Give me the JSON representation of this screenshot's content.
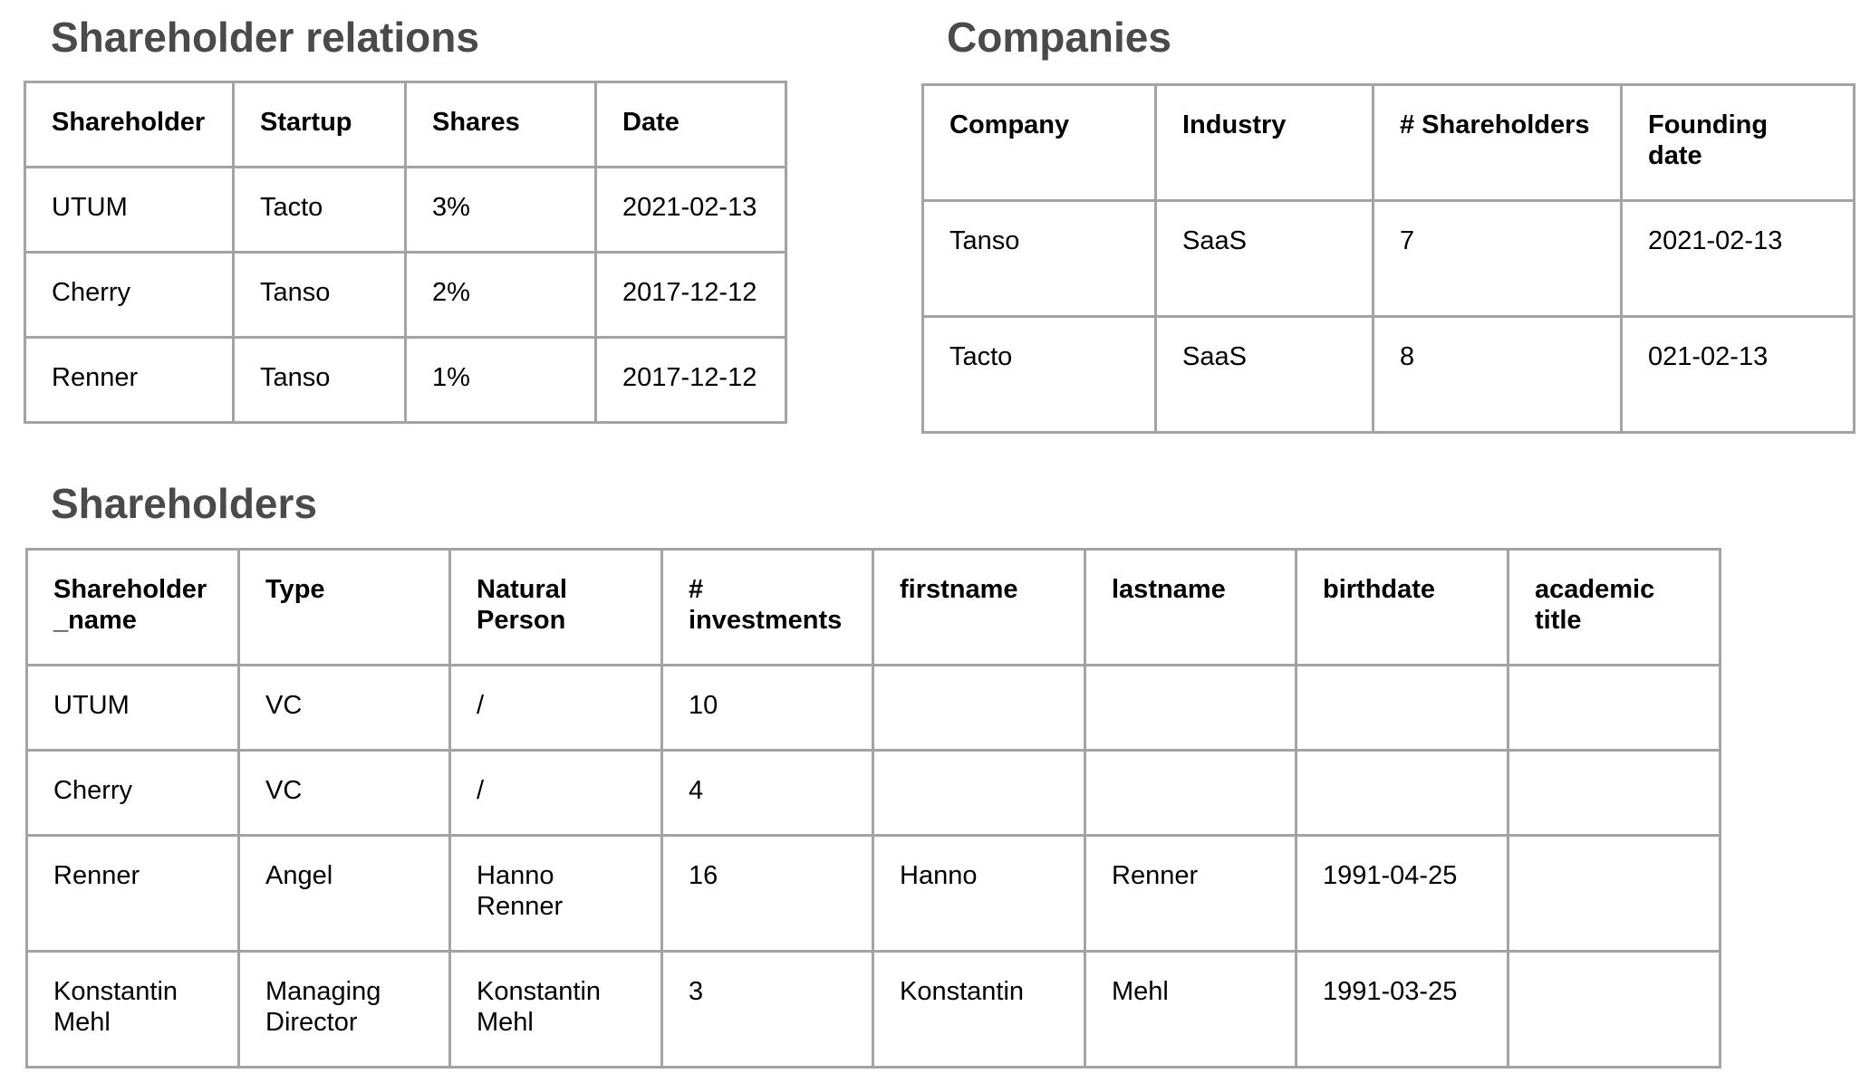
{
  "shareholder_relations": {
    "title": "Shareholder relations",
    "headers": [
      "Shareholder",
      "Startup",
      "Shares",
      "Date"
    ],
    "rows": [
      [
        "UTUM",
        "Tacto",
        "3%",
        "2021-02-13"
      ],
      [
        "Cherry",
        "Tanso",
        "2%",
        "2017-12-12"
      ],
      [
        "Renner",
        "Tanso",
        "1%",
        "2017-12-12"
      ]
    ]
  },
  "companies": {
    "title": "Companies",
    "headers": [
      "Company",
      "Industry",
      "# Shareholders",
      "Founding\ndate"
    ],
    "rows": [
      [
        "Tanso",
        "SaaS",
        "7",
        "2021-02-13"
      ],
      [
        "Tacto",
        "SaaS",
        "8",
        "021-02-13"
      ]
    ]
  },
  "shareholders": {
    "title": "Shareholders",
    "headers": [
      "Shareholder\n_name",
      "Type",
      "Natural\nPerson",
      "#\ninvestments",
      "firstname",
      "lastname",
      "birthdate",
      "academic\ntitle"
    ],
    "rows": [
      [
        "UTUM",
        "VC",
        "/",
        "10",
        "",
        "",
        "",
        ""
      ],
      [
        "Cherry",
        "VC",
        "/",
        "4",
        "",
        "",
        "",
        ""
      ],
      [
        "Renner",
        "Angel",
        "Hanno\nRenner",
        "16",
        "Hanno",
        "Renner",
        "1991-04-25",
        ""
      ],
      [
        "Konstantin\nMehl",
        "Managing\nDirector",
        "Konstantin\nMehl",
        "3",
        "Konstantin",
        "Mehl",
        "1991-03-25",
        ""
      ]
    ]
  }
}
